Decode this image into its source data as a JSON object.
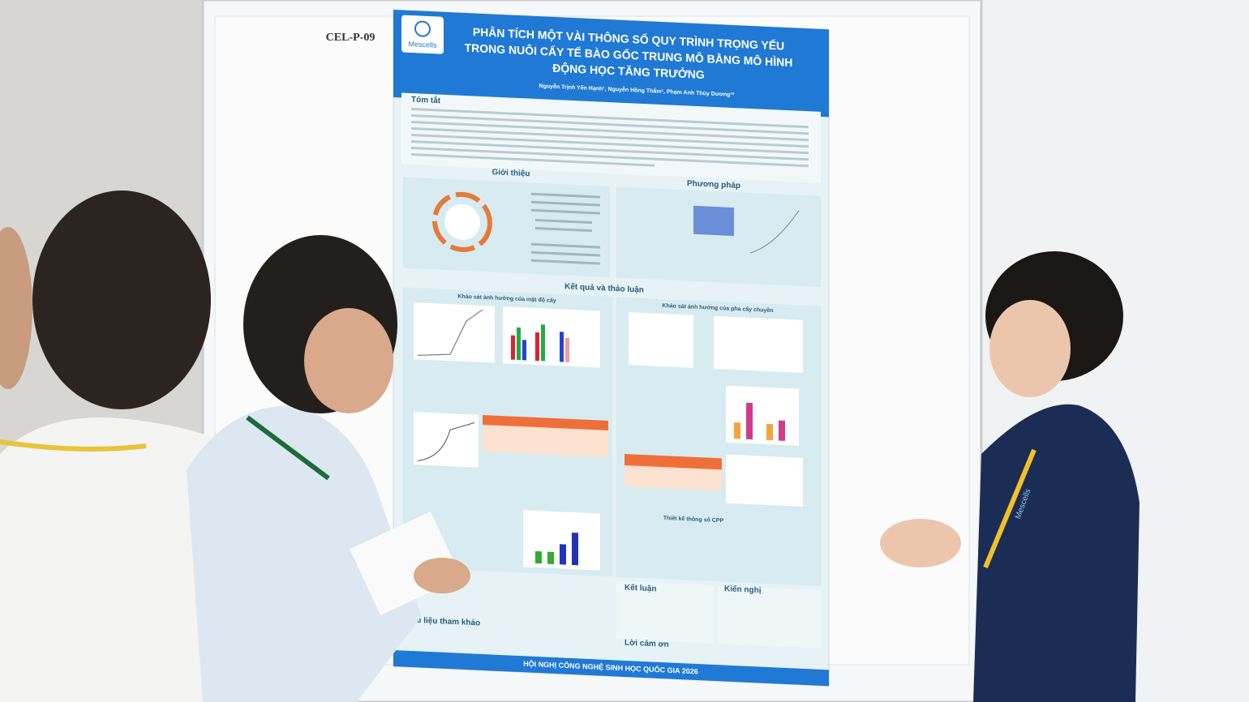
{
  "board": {
    "label": "CEL-P-09"
  },
  "poster": {
    "logo": "Mescells",
    "title": [
      "PHÂN TÍCH MỘT VÀI THÔNG SỐ QUY TRÌNH TRỌNG YẾU",
      "TRONG NUÔI CẤY TẾ BÀO GỐC TRUNG MÔ BẰNG MÔ HÌNH",
      "ĐỘNG HỌC TĂNG TRƯỞNG"
    ],
    "authors": "Nguyễn Trịnh Yến Hạnh¹, Nguyễn Hồng Thắm¹, Phạm Anh Thùy Dương¹*",
    "sections": {
      "abstract": "Tóm tắt",
      "intro": "Giới thiệu",
      "methods": "Phương pháp",
      "results": "Kết quả và thảo luận",
      "density": "Khảo sát ảnh hưởng của mật độ cấy",
      "passage": "Khảo sát ảnh hưởng của pha cấy chuyền",
      "cpp": "Thiết kế thông số CPP",
      "conclusion": "Kết luận",
      "recommendation": "Kiến nghị",
      "references": "Tài liệu tham khảo",
      "thanks": "Lời cảm ơn"
    },
    "footer": "HỘI NGHỊ CÔNG NGHỆ SINH HỌC QUỐC GIA 2026"
  },
  "shirt_logo": "Mescells"
}
